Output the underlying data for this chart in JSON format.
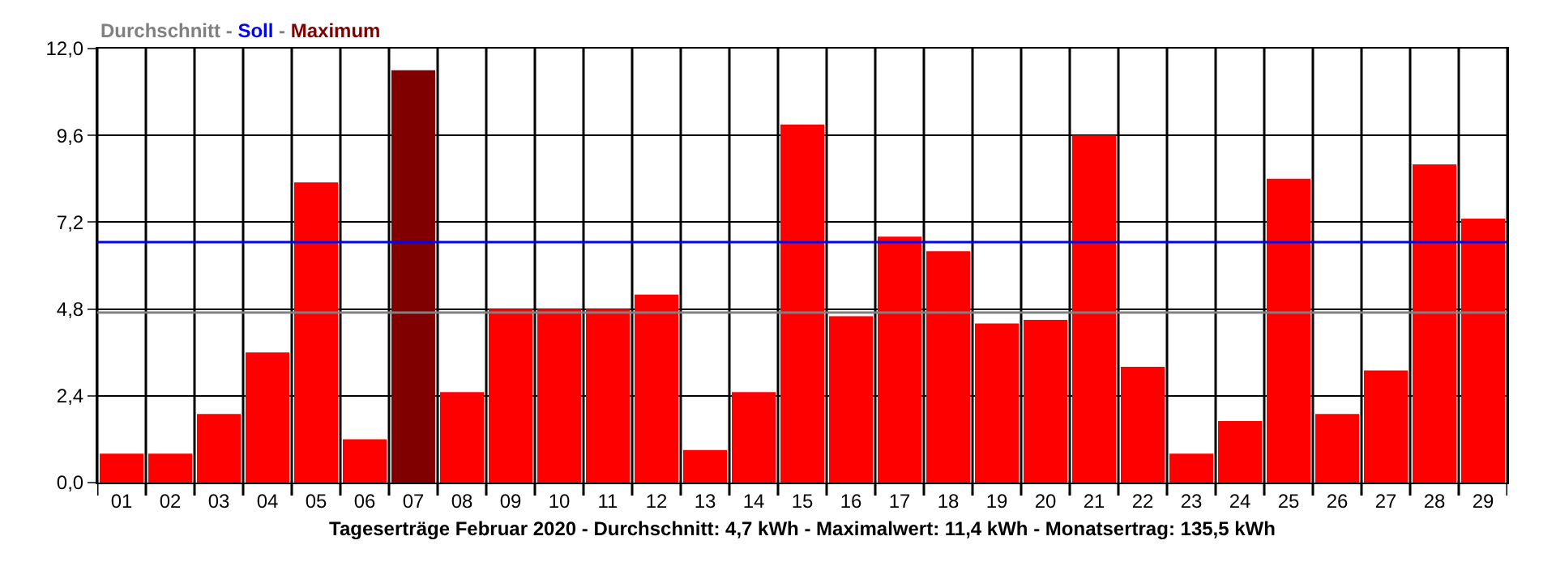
{
  "chart_data": {
    "type": "bar",
    "title": "Durchschnitt - Soll - Maximum",
    "xlabel": "Tageserträge Februar 2020 - Durchschnitt: 4,7 kWh - Maximalwert: 11,4 kWh - Monatsertrag: 135,5 kWh",
    "categories": [
      "01",
      "02",
      "03",
      "04",
      "05",
      "06",
      "07",
      "08",
      "09",
      "10",
      "11",
      "12",
      "13",
      "14",
      "15",
      "16",
      "17",
      "18",
      "19",
      "20",
      "21",
      "22",
      "23",
      "24",
      "25",
      "26",
      "27",
      "28",
      "29"
    ],
    "values": [
      0.8,
      0.8,
      1.9,
      3.6,
      8.3,
      1.2,
      11.4,
      2.5,
      4.8,
      4.8,
      4.8,
      5.2,
      0.9,
      2.5,
      9.9,
      4.6,
      6.8,
      6.4,
      4.4,
      4.5,
      9.6,
      3.2,
      0.8,
      1.7,
      8.4,
      1.9,
      3.1,
      8.8,
      7.3
    ],
    "colors": [
      "#ff0000",
      "#ff0000",
      "#ff0000",
      "#ff0000",
      "#ff0000",
      "#ff0000",
      "#800000",
      "#ff0000",
      "#ff0000",
      "#ff0000",
      "#ff0000",
      "#ff0000",
      "#ff0000",
      "#ff0000",
      "#ff0000",
      "#ff0000",
      "#ff0000",
      "#ff0000",
      "#ff0000",
      "#ff0000",
      "#ff0000",
      "#ff0000",
      "#ff0000",
      "#ff0000",
      "#ff0000",
      "#ff0000",
      "#ff0000",
      "#ff0000",
      "#ff0000"
    ],
    "ylim": [
      0,
      12
    ],
    "yticks": [
      {
        "value": 0,
        "label": "0,0"
      },
      {
        "value": 2.4,
        "label": "2,4"
      },
      {
        "value": 4.8,
        "label": "4,8"
      },
      {
        "value": 7.2,
        "label": "7,2"
      },
      {
        "value": 9.6,
        "label": "9,6"
      },
      {
        "value": 12,
        "label": "12,0"
      }
    ],
    "ref_lines": [
      {
        "axis": "y",
        "value": 4.7,
        "color": "#808080"
      },
      {
        "axis": "y",
        "value": 6.65,
        "color": "#0000ff"
      }
    ],
    "grid": true
  }
}
